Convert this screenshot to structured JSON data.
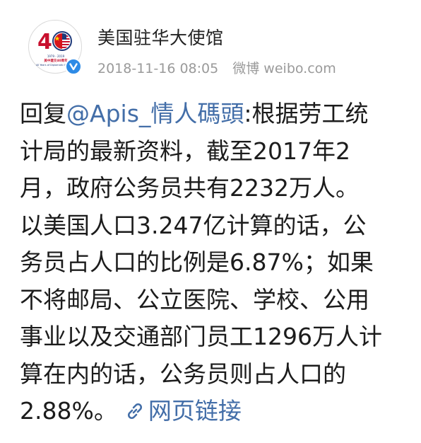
{
  "header": {
    "account_name": "美国驻华大使馆",
    "avatar_logo_text": "40",
    "avatar_logo_caption": "1979 - 2019 美中建交40周年 40 Years of Diplomatic Relations",
    "timestamp": "2018-11-16 08:05",
    "source": "微博 weibo.com"
  },
  "post": {
    "reply_prefix": "回复",
    "mention": "@Apis_情人碼頭",
    "lines": [
      ":根据劳工统",
      "计局的最新资料，截至2017年2",
      "月，政府公务员共有2232万人。",
      "以美国人口3.247亿计算的话，公",
      "务员占人口的比例是6.87%；如果",
      "不将邮局、公立医院、学校、公用",
      "事业以及交通部门员工1296万人计",
      "算在内的话，公务员则占人口的"
    ],
    "last_line": "2.88%。",
    "link_label": "网页链接"
  },
  "colors": {
    "link": "#436ea8",
    "meta": "#9a9a9a",
    "verified_badge": "#2e8be6"
  },
  "icons": {
    "verified": "verified-v-icon",
    "link": "link-chain-icon"
  }
}
